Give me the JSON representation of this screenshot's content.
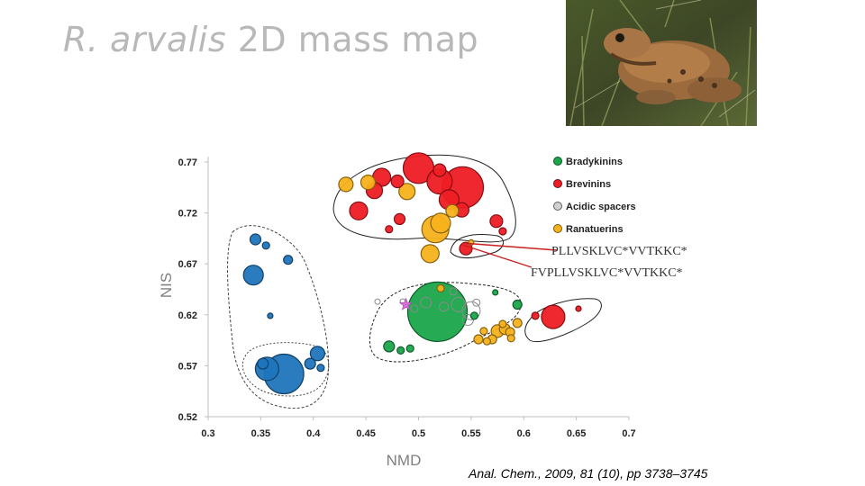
{
  "slide": {
    "title_italic": "R. arvalis",
    "title_rest": " 2D mass map",
    "citation": "Anal. Chem., 2009, 81 (10), pp 3738–3745",
    "photo_icon": "frog-photo-icon"
  },
  "chart_data": {
    "type": "scatter",
    "title": "",
    "xlabel": "NMD",
    "ylabel": "NIS",
    "xlim": [
      0.3,
      0.7
    ],
    "ylim": [
      0.52,
      0.77
    ],
    "x_ticks": [
      "0.3",
      "0.35",
      "0.4",
      "0.45",
      "0.5",
      "0.55",
      "0.6",
      "0.65",
      "0.7"
    ],
    "y_ticks": [
      "0.77",
      "0.72",
      "0.67",
      "0.62",
      "0.57",
      "0.52"
    ],
    "legend": [
      {
        "name": "Bradykinins",
        "color": "#1aa64b"
      },
      {
        "name": "Brevinins",
        "color": "#ee1c24"
      },
      {
        "name": "Acidic spacers",
        "color": "#bcbcbc"
      },
      {
        "name": "Ranatuerins",
        "color": "#f7b21b"
      }
    ],
    "legend_position": "top-right",
    "grid": false,
    "annotations": [
      {
        "text": "PLLVSKLVC*VVTKKC*",
        "x": 0.544,
        "y": 0.684
      },
      {
        "text": "FVPLLVSKLVC*VVTKKC*",
        "x": 0.544,
        "y": 0.684
      }
    ],
    "highlight_marker": {
      "shape": "star",
      "color": "#d86bd8",
      "x": 0.488,
      "y": 0.63
    },
    "series": [
      {
        "name": "Bradykinins",
        "color": "#1aa64b",
        "points": [
          {
            "x": 0.518,
            "y": 0.623,
            "r": 33
          },
          {
            "x": 0.472,
            "y": 0.589,
            "r": 6
          },
          {
            "x": 0.483,
            "y": 0.585,
            "r": 4
          },
          {
            "x": 0.492,
            "y": 0.587,
            "r": 4
          },
          {
            "x": 0.553,
            "y": 0.619,
            "r": 4
          },
          {
            "x": 0.594,
            "y": 0.63,
            "r": 5
          },
          {
            "x": 0.573,
            "y": 0.642,
            "r": 3
          }
        ]
      },
      {
        "name": "Brevinins",
        "color": "#ee1c24",
        "points": [
          {
            "x": 0.5,
            "y": 0.764,
            "r": 17
          },
          {
            "x": 0.542,
            "y": 0.745,
            "r": 23
          },
          {
            "x": 0.52,
            "y": 0.751,
            "r": 14
          },
          {
            "x": 0.465,
            "y": 0.755,
            "r": 10
          },
          {
            "x": 0.458,
            "y": 0.742,
            "r": 9
          },
          {
            "x": 0.529,
            "y": 0.733,
            "r": 11
          },
          {
            "x": 0.541,
            "y": 0.723,
            "r": 8
          },
          {
            "x": 0.443,
            "y": 0.722,
            "r": 10
          },
          {
            "x": 0.48,
            "y": 0.751,
            "r": 7
          },
          {
            "x": 0.52,
            "y": 0.762,
            "r": 7
          },
          {
            "x": 0.574,
            "y": 0.712,
            "r": 7
          },
          {
            "x": 0.482,
            "y": 0.714,
            "r": 6
          },
          {
            "x": 0.545,
            "y": 0.685,
            "r": 7
          },
          {
            "x": 0.628,
            "y": 0.618,
            "r": 13
          },
          {
            "x": 0.472,
            "y": 0.704,
            "r": 4
          },
          {
            "x": 0.58,
            "y": 0.702,
            "r": 4
          },
          {
            "x": 0.652,
            "y": 0.626,
            "r": 3
          },
          {
            "x": 0.611,
            "y": 0.619,
            "r": 4
          }
        ]
      },
      {
        "name": "Acidic spacers",
        "color": "#bcbcbc",
        "points": [
          {
            "x": 0.55,
            "y": 0.624,
            "r": 10
          },
          {
            "x": 0.538,
            "y": 0.63,
            "r": 8
          },
          {
            "x": 0.547,
            "y": 0.615,
            "r": 6
          },
          {
            "x": 0.507,
            "y": 0.632,
            "r": 6
          },
          {
            "x": 0.524,
            "y": 0.628,
            "r": 5
          },
          {
            "x": 0.496,
            "y": 0.626,
            "r": 4
          },
          {
            "x": 0.533,
            "y": 0.643,
            "r": 4
          },
          {
            "x": 0.555,
            "y": 0.632,
            "r": 4
          },
          {
            "x": 0.485,
            "y": 0.633,
            "r": 3
          },
          {
            "x": 0.461,
            "y": 0.633,
            "r": 3
          }
        ]
      },
      {
        "name": "Ranatuerins",
        "color": "#f7b21b",
        "points": [
          {
            "x": 0.516,
            "y": 0.704,
            "r": 15
          },
          {
            "x": 0.521,
            "y": 0.71,
            "r": 11
          },
          {
            "x": 0.532,
            "y": 0.722,
            "r": 7
          },
          {
            "x": 0.452,
            "y": 0.75,
            "r": 8
          },
          {
            "x": 0.431,
            "y": 0.748,
            "r": 8
          },
          {
            "x": 0.489,
            "y": 0.741,
            "r": 9
          },
          {
            "x": 0.511,
            "y": 0.68,
            "r": 10
          },
          {
            "x": 0.521,
            "y": 0.646,
            "r": 4
          },
          {
            "x": 0.575,
            "y": 0.604,
            "r": 7
          },
          {
            "x": 0.582,
            "y": 0.606,
            "r": 6
          },
          {
            "x": 0.57,
            "y": 0.596,
            "r": 5
          },
          {
            "x": 0.557,
            "y": 0.596,
            "r": 5
          },
          {
            "x": 0.587,
            "y": 0.603,
            "r": 5
          },
          {
            "x": 0.58,
            "y": 0.611,
            "r": 4
          },
          {
            "x": 0.594,
            "y": 0.612,
            "r": 5
          },
          {
            "x": 0.588,
            "y": 0.597,
            "r": 4
          },
          {
            "x": 0.562,
            "y": 0.604,
            "r": 4
          },
          {
            "x": 0.565,
            "y": 0.594,
            "r": 4
          },
          {
            "x": 0.55,
            "y": 0.691,
            "r": 3
          }
        ]
      },
      {
        "name": "",
        "color": "#1f75bc",
        "points": [
          {
            "x": 0.372,
            "y": 0.562,
            "r": 22
          },
          {
            "x": 0.356,
            "y": 0.567,
            "r": 13
          },
          {
            "x": 0.397,
            "y": 0.572,
            "r": 6
          },
          {
            "x": 0.404,
            "y": 0.582,
            "r": 8
          },
          {
            "x": 0.407,
            "y": 0.568,
            "r": 4
          },
          {
            "x": 0.343,
            "y": 0.659,
            "r": 11
          },
          {
            "x": 0.345,
            "y": 0.694,
            "r": 6
          },
          {
            "x": 0.355,
            "y": 0.688,
            "r": 4
          },
          {
            "x": 0.376,
            "y": 0.674,
            "r": 5
          },
          {
            "x": 0.359,
            "y": 0.619,
            "r": 3
          },
          {
            "x": 0.352,
            "y": 0.572,
            "r": 6
          }
        ]
      }
    ]
  }
}
